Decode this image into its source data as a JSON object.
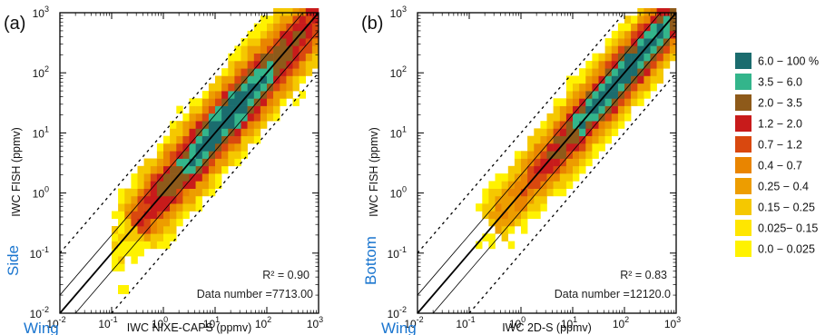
{
  "colors": {
    "yellow": "#FFF200",
    "gold": "#F5C800",
    "orange_light": "#ED9D00",
    "orange": "#E98500",
    "red_orange": "#D9480F",
    "red": "#C81B1B",
    "brown": "#8E5A1A",
    "green": "#33B58B",
    "teal": "#1B6C6E",
    "location_text": "#1a75cf"
  },
  "chart_data": [
    {
      "type": "heatmap",
      "panel_label": "(a)",
      "xlabel": "IWC NIXE-CAPS (ppmv)",
      "ylabel": "IWC FISH (ppmv)",
      "x_scale": "log",
      "y_scale": "log",
      "xlim": [
        0.01,
        1000
      ],
      "ylim": [
        0.01,
        1000
      ],
      "x_ticks": [
        "10-2",
        "10-1",
        "100",
        "101",
        "102",
        "103"
      ],
      "y_ticks": [
        "10-2",
        "10-1",
        "100",
        "101",
        "102",
        "103"
      ],
      "r2_label": "R² = 0.90",
      "data_number_label": "Data number =7713.00",
      "location_top": "Side",
      "location_bottom": "Wing",
      "reference_lines": [
        "1:1 (solid thick)",
        "x2 and x0.5 (solid thin)",
        "x10 and x0.1 (dotted)"
      ]
    },
    {
      "type": "heatmap",
      "panel_label": "(b)",
      "xlabel": "IWC 2D-S (ppmv)",
      "ylabel": "IWC FISH (ppmv)",
      "x_scale": "log",
      "y_scale": "log",
      "xlim": [
        0.01,
        1000
      ],
      "ylim": [
        0.01,
        1000
      ],
      "x_ticks": [
        "10-2",
        "10-1",
        "100",
        "101",
        "102",
        "103"
      ],
      "y_ticks": [
        "10-2",
        "10-1",
        "100",
        "101",
        "102",
        "103"
      ],
      "r2_label": "R² = 0.83",
      "data_number_label": "Data number =12120.0",
      "location_top": "Bottom",
      "location_bottom": "Wing",
      "reference_lines": [
        "1:1 (solid thick)",
        "x2 and x0.5 (solid thin)",
        "x10 and x0.1 (dotted)"
      ]
    }
  ],
  "legend": {
    "placement": "right",
    "unit": "%",
    "entries": [
      {
        "label": "6.0 − 100 %",
        "color": "#1B6C6E"
      },
      {
        "label": "3.5 − 6.0",
        "color": "#33B58B"
      },
      {
        "label": "2.0 − 3.5",
        "color": "#8E5A1A"
      },
      {
        "label": "1.2 − 2.0",
        "color": "#C81B1B"
      },
      {
        "label": "0.7 − 1.2",
        "color": "#D9480F"
      },
      {
        "label": "0.4 − 0.7",
        "color": "#E98500"
      },
      {
        "label": "0.25 − 0.4",
        "color": "#ED9D00"
      },
      {
        "label": "0.15 − 0.25",
        "color": "#F5C800"
      },
      {
        "label": "0.025− 0.15",
        "color": "#FFE600"
      },
      {
        "label": "0.0 − 0.025",
        "color": "#FFF200"
      }
    ]
  }
}
